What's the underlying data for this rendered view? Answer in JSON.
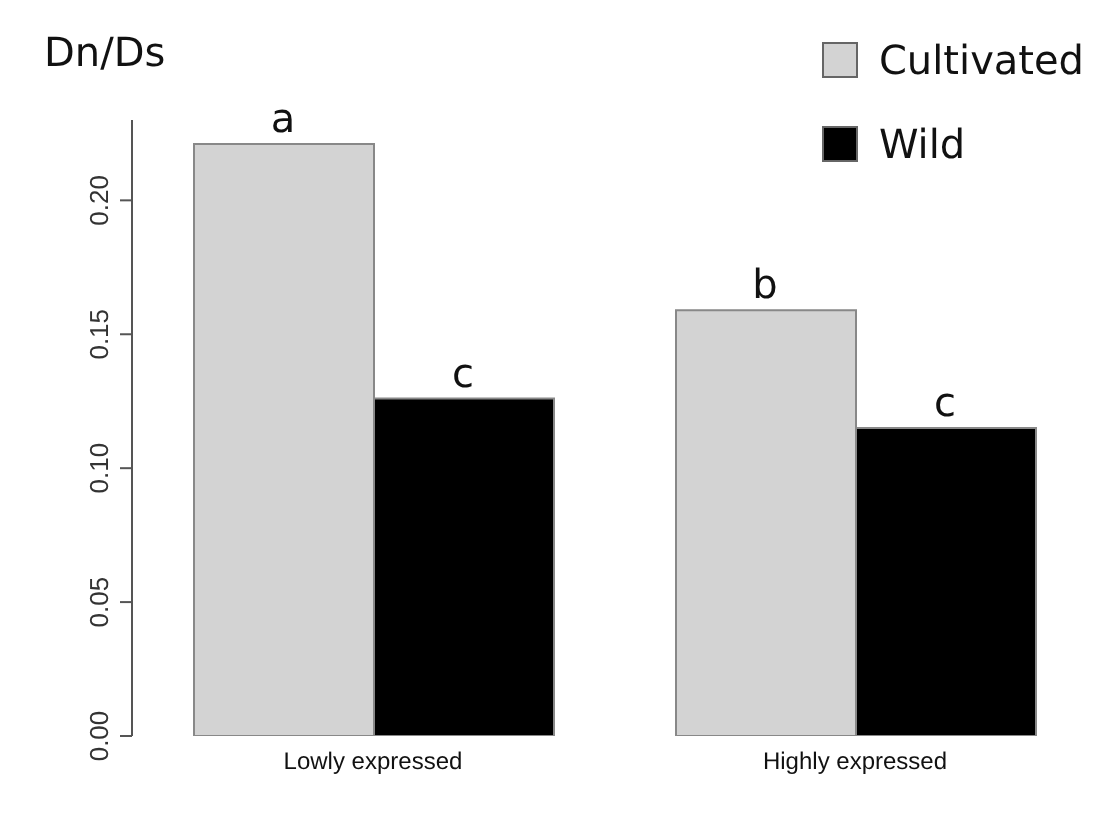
{
  "chart_data": {
    "type": "bar",
    "ylabel": "Dn/Ds",
    "categories": [
      "Lowly expressed",
      "Highly expressed"
    ],
    "series": [
      {
        "name": "Cultivated",
        "color": "#d3d3d3",
        "values": [
          0.221,
          0.159
        ]
      },
      {
        "name": "Wild",
        "color": "#000000",
        "values": [
          0.126,
          0.115
        ]
      }
    ],
    "ylim": [
      0,
      0.23
    ],
    "yticks": [
      {
        "value": 0,
        "label": "0.00"
      },
      {
        "value": 0.05,
        "label": "0.05"
      },
      {
        "value": 0.1,
        "label": "0.10"
      },
      {
        "value": 0.15,
        "label": "0.15"
      },
      {
        "value": 0.2,
        "label": "0.20"
      }
    ],
    "grid": false,
    "legend": "top right",
    "annotations": [
      {
        "text": "a",
        "x": "Lowly expressed",
        "y": 0.221
      },
      {
        "text": "c",
        "x": "Lowly expressed",
        "y": 0.126
      },
      {
        "text": "b",
        "x": "Highly expressed",
        "y": 0.159
      },
      {
        "text": "c",
        "x": "Highly expressed",
        "y": 0.115
      }
    ]
  }
}
